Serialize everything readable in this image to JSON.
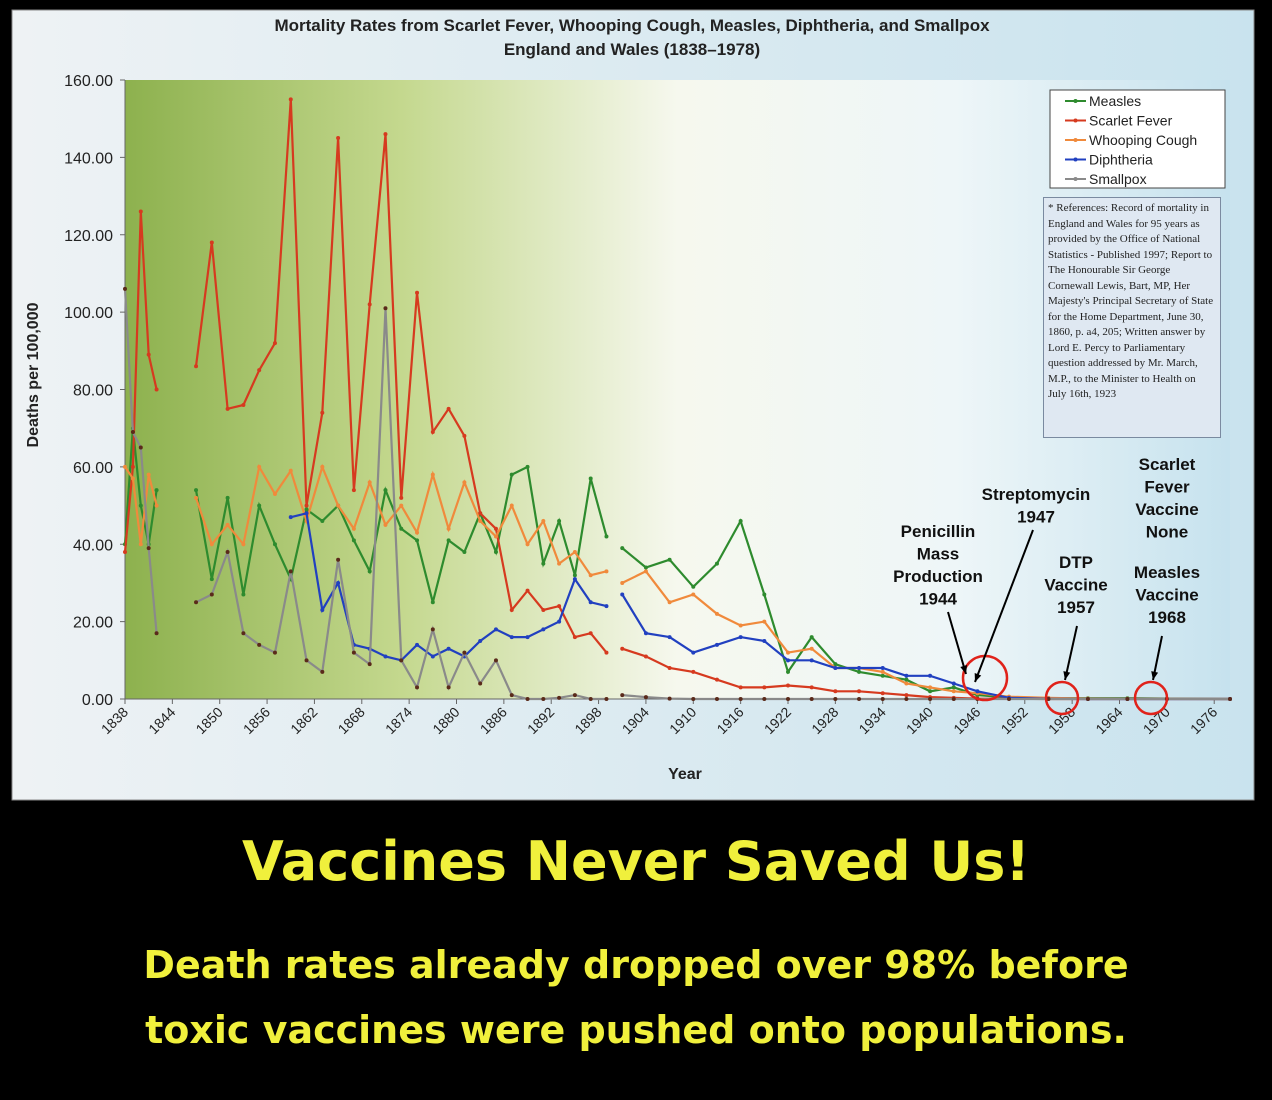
{
  "chart_data": {
    "type": "line",
    "title": "Mortality Rates from Scarlet Fever, Whooping Cough, Measles, Diphtheria, and Smallpox",
    "subtitle": "England and Wales (1838–1978)",
    "x_label": "Year",
    "y_label": "Deaths per 100,000",
    "xlim": [
      1838,
      1978
    ],
    "ylim": [
      0,
      160
    ],
    "xticks": [
      1838,
      1844,
      1850,
      1856,
      1862,
      1868,
      1874,
      1880,
      1886,
      1892,
      1898,
      1904,
      1910,
      1916,
      1922,
      1928,
      1934,
      1940,
      1946,
      1952,
      1958,
      1964,
      1970,
      1976
    ],
    "yticks": [
      {
        "value": 0,
        "label": "0.00"
      },
      {
        "value": 20,
        "label": "20.00"
      },
      {
        "value": 40,
        "label": "40.00"
      },
      {
        "value": 60,
        "label": "60.00"
      },
      {
        "value": 80,
        "label": "80.00"
      },
      {
        "value": 100,
        "label": "100.00"
      },
      {
        "value": 120,
        "label": "120.00"
      },
      {
        "value": 140,
        "label": "140.00"
      },
      {
        "value": 160,
        "label": "160.00"
      }
    ],
    "legend_position": "upper right",
    "x": [
      1838,
      1839,
      1840,
      1841,
      1842,
      1843,
      1847,
      1849,
      1851,
      1853,
      1855,
      1857,
      1859,
      1861,
      1863,
      1865,
      1867,
      1869,
      1871,
      1873,
      1875,
      1877,
      1879,
      1881,
      1883,
      1885,
      1887,
      1889,
      1891,
      1893,
      1895,
      1897,
      1899,
      1900,
      1901,
      1904,
      1907,
      1910,
      1913,
      1916,
      1919,
      1922,
      1925,
      1928,
      1931,
      1934,
      1937,
      1940,
      1943,
      1946,
      1950,
      1955,
      1960,
      1965,
      1970,
      1978
    ],
    "series": [
      {
        "name": "Measles",
        "color": "#2e8b2e",
        "values": [
          40,
          70,
          50,
          40,
          54,
          null,
          54,
          31,
          52,
          27,
          50,
          40,
          31,
          49,
          46,
          50,
          41,
          33,
          54,
          44,
          41,
          25,
          41,
          38,
          48,
          38,
          58,
          60,
          35,
          46,
          32,
          57,
          42,
          null,
          39,
          34,
          36,
          29,
          35,
          46,
          27,
          7,
          16,
          9,
          7,
          6,
          5,
          2,
          3,
          1,
          0.4,
          0.2,
          0.2,
          0.2,
          0.1,
          0
        ]
      },
      {
        "name": "Scarlet Fever",
        "color": "#d63a1f",
        "values": [
          38,
          60,
          126,
          89,
          80,
          null,
          86,
          118,
          75,
          76,
          85,
          92,
          155,
          50,
          74,
          145,
          54,
          102,
          146,
          52,
          105,
          69,
          75,
          68,
          48,
          44,
          23,
          28,
          23,
          24,
          16,
          17,
          12,
          null,
          13,
          11,
          8,
          7,
          5,
          3,
          3,
          3.5,
          3,
          2,
          2,
          1.5,
          1,
          0.5,
          0.3,
          0.1,
          0.05,
          0,
          0,
          0,
          0,
          0
        ]
      },
      {
        "name": "Whooping Cough",
        "color": "#f08a3c",
        "values": [
          60,
          57,
          40,
          58,
          50,
          null,
          52,
          40,
          45,
          40,
          60,
          53,
          59,
          46,
          60,
          50,
          44,
          56,
          45,
          50,
          43,
          58,
          44,
          56,
          46,
          42,
          50,
          40,
          46,
          35,
          38,
          32,
          33,
          null,
          30,
          33,
          25,
          27,
          22,
          19,
          20,
          12,
          13,
          8,
          8,
          7,
          4,
          3,
          2,
          1.5,
          0.6,
          0.3,
          0.1,
          0.05,
          0.02,
          0
        ]
      },
      {
        "name": "Diphtheria",
        "color": "#2140c0",
        "values": [
          null,
          null,
          null,
          null,
          null,
          null,
          null,
          null,
          null,
          null,
          null,
          null,
          47,
          48,
          23,
          30,
          14,
          13,
          11,
          10,
          14,
          11,
          13,
          11,
          15,
          18,
          16,
          16,
          18,
          20,
          31,
          25,
          24,
          null,
          27,
          17,
          16,
          12,
          14,
          16,
          15,
          10,
          10,
          8,
          8,
          8,
          6,
          6,
          4,
          2,
          0.3,
          0.05,
          0,
          0,
          0,
          0
        ]
      },
      {
        "name": "Smallpox",
        "color": "#8a8a8a",
        "values": [
          106,
          69,
          65,
          39,
          17,
          null,
          25,
          27,
          38,
          17,
          14,
          12,
          33,
          10,
          7,
          36,
          12,
          9,
          101,
          10,
          3,
          18,
          3,
          12,
          4,
          10,
          1,
          0,
          0,
          0.3,
          1,
          0,
          0,
          null,
          1,
          0.5,
          0.1,
          0,
          0,
          0,
          0,
          0,
          0,
          0,
          0,
          0,
          0,
          0,
          0,
          0,
          0,
          0,
          0,
          0,
          0,
          0
        ]
      }
    ],
    "annotations": [
      [
        "Penicillin",
        "Mass",
        "Production",
        "1944"
      ],
      [
        "Streptomycin",
        "1947"
      ],
      [
        "DTP",
        "Vaccine",
        "1957"
      ],
      [
        "Scarlet",
        "Fever",
        "Vaccine",
        "None"
      ],
      [
        "Measles",
        "Vaccine",
        "1968"
      ]
    ],
    "references": "* References: Record of mortality in England and Wales for 95 years as provided by the Office of National Statistics - Published 1997; Report to The Honourable Sir George Cornewall Lewis, Bart, MP, Her Majesty's Principal Secretary of State for the Home Department, June 30, 1860, p. a4, 205; Written answer by Lord E. Percy to Parliamentary question addressed by Mr. March, M.P., to the Minister to Health on July 16th, 1923"
  },
  "caption": {
    "headline": "Vaccines Never Saved Us!",
    "lines": [
      "Death rates already dropped over 98% before",
      "toxic vaccines were pushed onto populations."
    ]
  }
}
